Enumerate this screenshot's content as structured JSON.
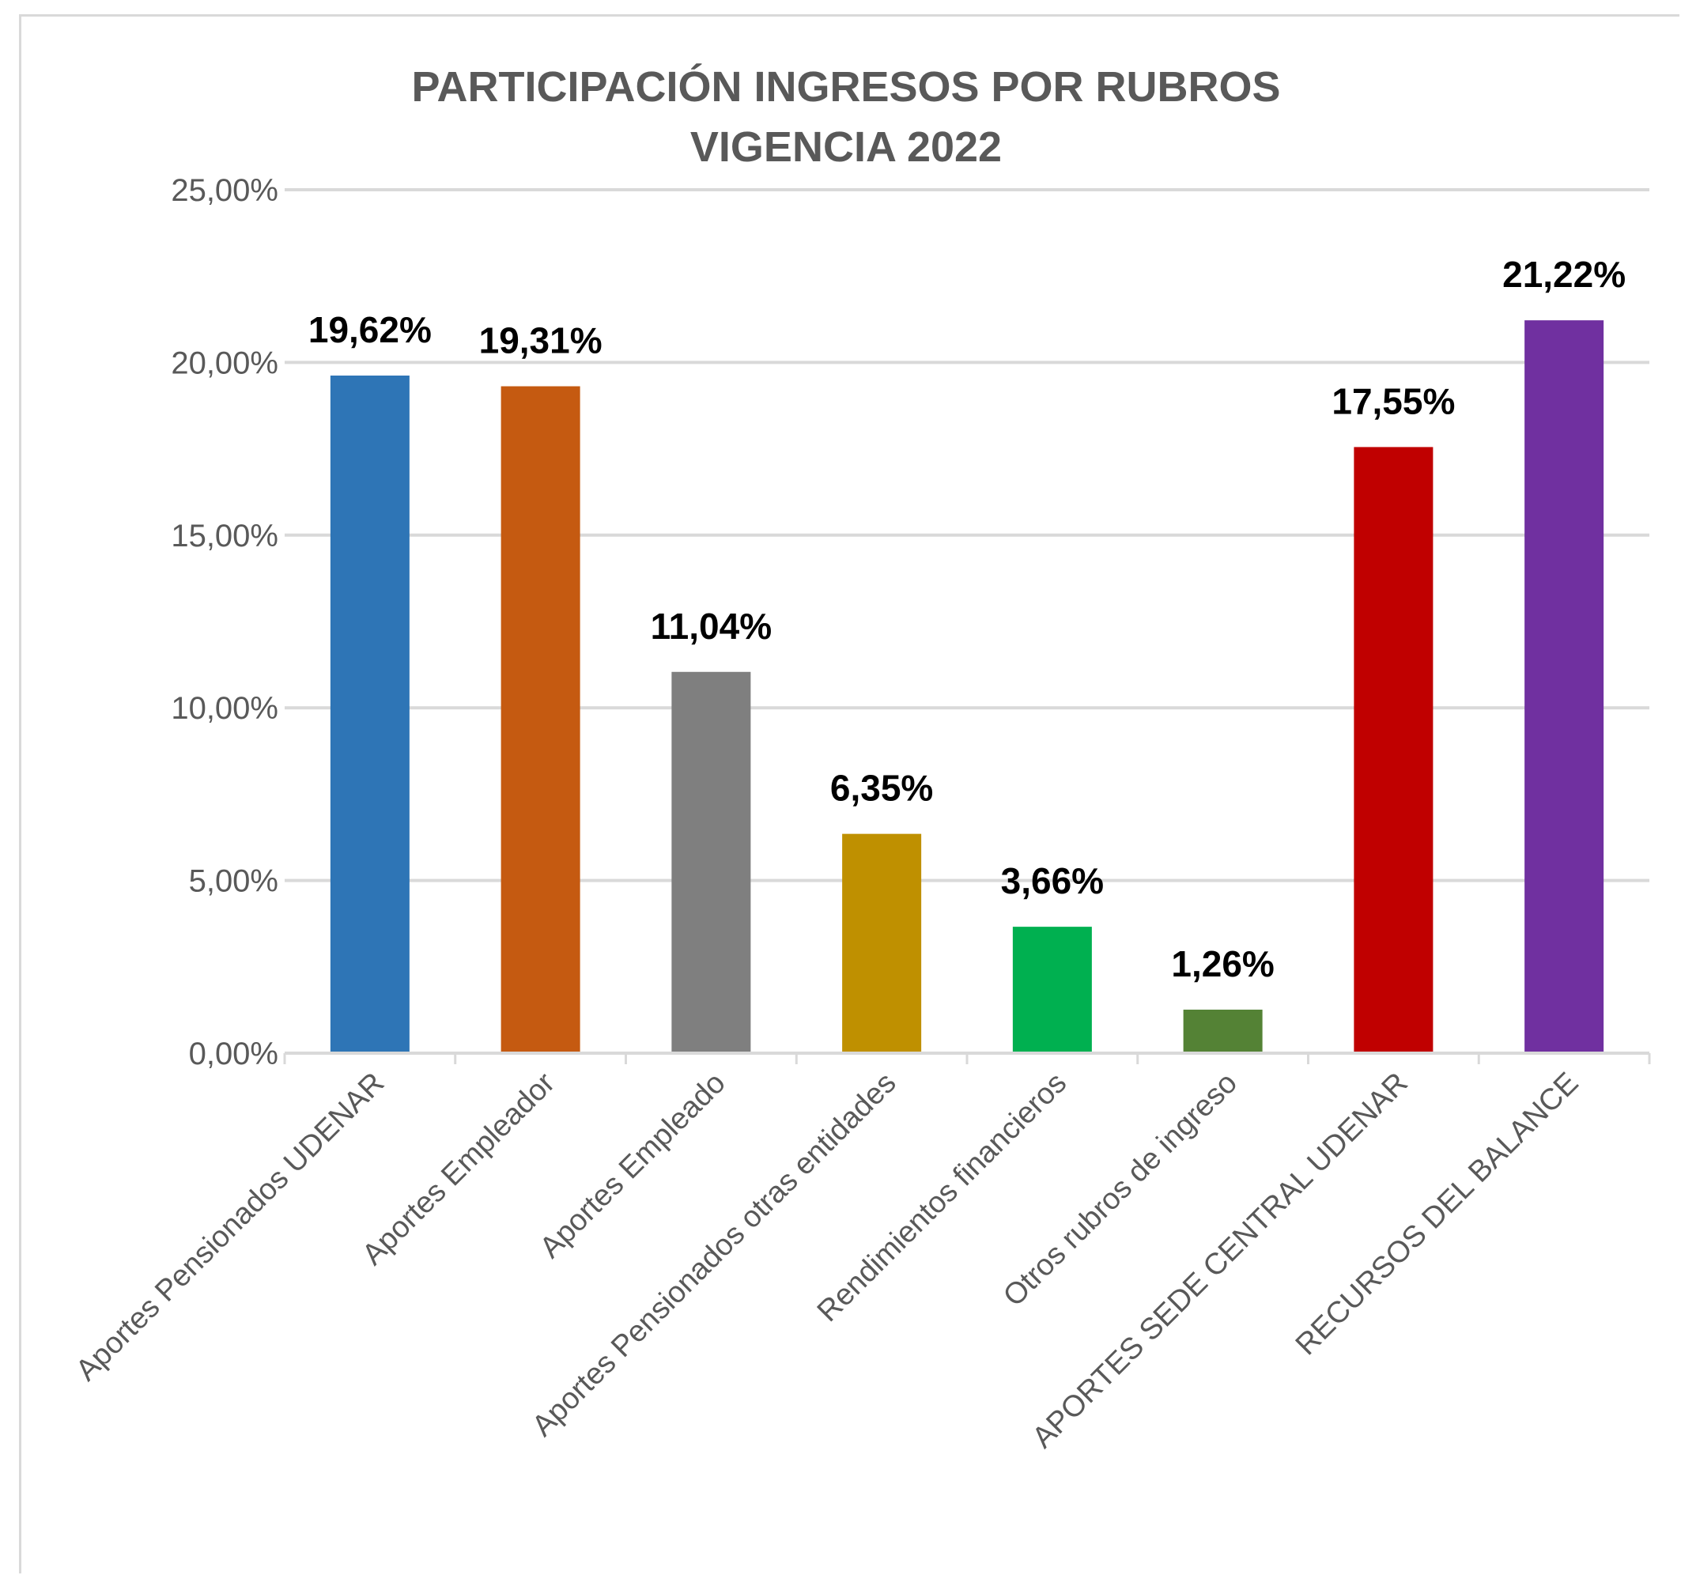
{
  "chart_data": {
    "type": "bar",
    "title": "PARTICIPACIÓN INGRESOS POR RUBROS",
    "subtitle": "VIGENCIA 2022",
    "xlabel": "",
    "ylabel": "",
    "ylim": [
      0,
      25
    ],
    "yticks": [
      "0,00%",
      "5,00%",
      "10,00%",
      "15,00%",
      "20,00%",
      "25,00%"
    ],
    "grid": true,
    "categories": [
      "Aportes Pensionados UDENAR",
      "Aportes Empleador",
      "Aportes Empleado",
      "Aportes Pensionados otras entidades",
      "Rendimientos financieros",
      "Otros rubros de ingreso",
      "APORTES SEDE CENTRAL UDENAR",
      "RECURSOS DEL BALANCE"
    ],
    "values": [
      19.62,
      19.31,
      11.04,
      6.35,
      3.66,
      1.26,
      17.55,
      21.22
    ],
    "data_labels": [
      "19,62%",
      "19,31%",
      "11,04%",
      "6,35%",
      "3,66%",
      "1,26%",
      "17,55%",
      "21,22%"
    ],
    "colors": [
      "#2e75b6",
      "#c55a11",
      "#7f7f7f",
      "#bf9000",
      "#00b050",
      "#548235",
      "#c00000",
      "#7030a0"
    ]
  }
}
